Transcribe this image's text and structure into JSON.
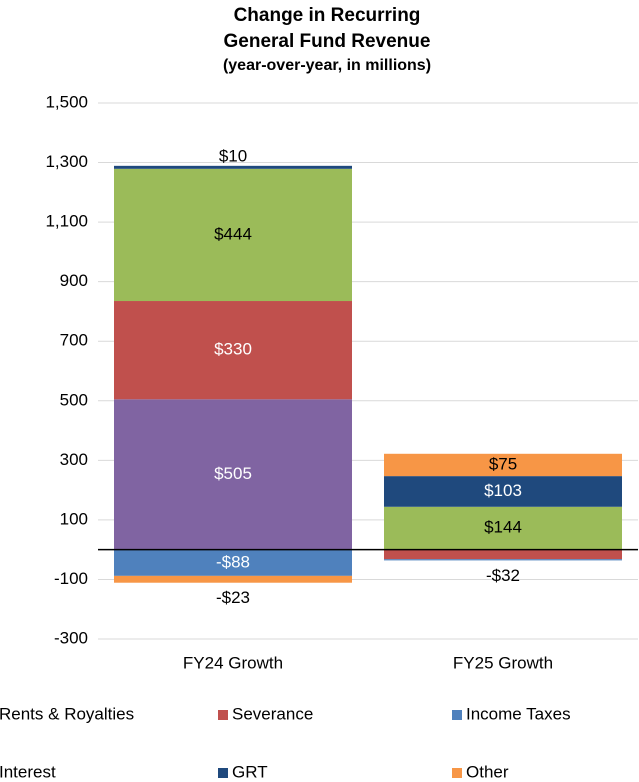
{
  "chart_data": {
    "type": "stacked_bar",
    "title": "Change in Recurring",
    "title_line2": "General Fund Revenue",
    "subtitle": "(year-over-year, in millions)",
    "categories": [
      "FY24 Growth",
      "FY25 Growth"
    ],
    "series": [
      {
        "name": "Rents & Royalties",
        "color": "#8064a2",
        "values": [
          505,
          0
        ],
        "value_labels": [
          "$505",
          null
        ]
      },
      {
        "name": "Severance",
        "color": "#c0504d",
        "values": [
          330,
          -32
        ],
        "value_labels": [
          "$330",
          "-$32"
        ]
      },
      {
        "name": "Income Taxes",
        "color": "#4f81bd",
        "values": [
          -88,
          -4
        ],
        "value_labels": [
          "-$88",
          null
        ]
      },
      {
        "name": "Interest",
        "color": "#9bbb59",
        "values": [
          444,
          144
        ],
        "value_labels": [
          "$444",
          "$144"
        ]
      },
      {
        "name": "GRT",
        "color": "#1f497d",
        "values": [
          10,
          103
        ],
        "value_labels": [
          "$10",
          "$103"
        ]
      },
      {
        "name": "Other",
        "color": "#f79646",
        "values": [
          -23,
          75
        ],
        "value_labels": [
          "-$23",
          "$75"
        ]
      }
    ],
    "ylim": [
      -300,
      1500
    ],
    "yticks": [
      {
        "value": -300,
        "label": "-300"
      },
      {
        "value": -100,
        "label": "-100"
      },
      100,
      300,
      500,
      700,
      900,
      {
        "value": 1100,
        "label": "1,100"
      },
      {
        "value": 1300,
        "label": "1,300"
      },
      {
        "value": 1500,
        "label": "1,500"
      }
    ],
    "grid": true
  }
}
